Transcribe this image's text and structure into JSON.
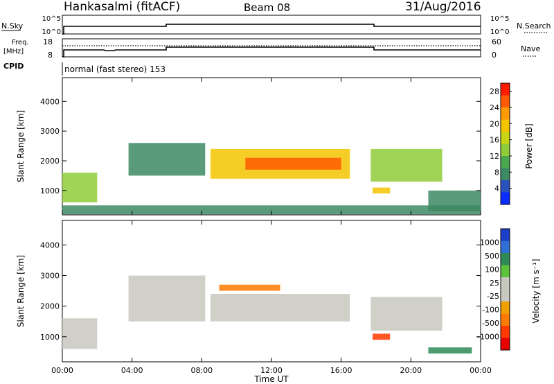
{
  "header": {
    "station": "Hankasalmi (fitACF)",
    "beam": "Beam 08",
    "date": "31/Aug/2016"
  },
  "strip_labels": {
    "nsky": "N.Sky",
    "nsearch": "N.Search",
    "freq_line1": "Freq.",
    "freq_line2": "[MHz]",
    "nave": "Nave",
    "cpid": "CPID",
    "cpid_value": "normal (fast stereo) 153",
    "noise_left_ticks": [
      "10^5",
      "10^0"
    ],
    "noise_right_ticks": [
      "10^5",
      "10^0"
    ],
    "freq_left_ticks": [
      "18",
      "8"
    ],
    "freq_right_ticks": [
      "60",
      "0"
    ]
  },
  "colors": {
    "power": [
      "#0a2cff",
      "#2a52be",
      "#3d8a64",
      "#4aa84e",
      "#8fcc3a",
      "#c8d414",
      "#f5c400",
      "#ff9a00",
      "#ff5a00",
      "#ff1a00"
    ],
    "velocity": [
      "#1c3fc9",
      "#2f6fd6",
      "#2f8a55",
      "#5cc23c",
      "#c8c8c0",
      "#c8c8c0",
      "#f0a000",
      "#ff7a00",
      "#ff3a00",
      "#e80000"
    ]
  },
  "chart_data": [
    {
      "type": "heatmap",
      "name": "power",
      "title": "",
      "xlabel": "Time UT",
      "ylabel": "Slant Range [km]",
      "x_ticks": [
        "00:00",
        "04:00",
        "08:00",
        "12:00",
        "16:00",
        "20:00",
        "00:00"
      ],
      "xlim_hours": [
        0,
        24
      ],
      "y_ticks": [
        1000,
        2000,
        3000,
        4000
      ],
      "ylim": [
        180,
        4800
      ],
      "colorbar_label": "Power [dB]",
      "colorbar_ticks": [
        "4",
        "8",
        "12",
        "16",
        "20",
        "24",
        "28"
      ],
      "colorbar_range": [
        0,
        30
      ],
      "regions": [
        {
          "t0": 0.0,
          "t1": 2.0,
          "r0": 600,
          "r1": 1600,
          "value": 14
        },
        {
          "t0": 0.0,
          "t1": 24.0,
          "r0": 200,
          "r1": 500,
          "value": 6
        },
        {
          "t0": 3.8,
          "t1": 8.2,
          "r0": 1500,
          "r1": 2600,
          "value": 8
        },
        {
          "t0": 8.5,
          "t1": 16.5,
          "r0": 1400,
          "r1": 2400,
          "value": 20
        },
        {
          "t0": 10.5,
          "t1": 16.0,
          "r0": 1700,
          "r1": 2100,
          "value": 26
        },
        {
          "t0": 17.7,
          "t1": 21.8,
          "r0": 1300,
          "r1": 2400,
          "value": 12
        },
        {
          "t0": 17.8,
          "t1": 18.8,
          "r0": 900,
          "r1": 1100,
          "value": 20
        },
        {
          "t0": 21.0,
          "t1": 24.0,
          "r0": 300,
          "r1": 1000,
          "value": 8
        }
      ]
    },
    {
      "type": "heatmap",
      "name": "velocity",
      "title": "",
      "xlabel": "Time UT",
      "ylabel": "Slant Range [km]",
      "x_ticks": [
        "00:00",
        "04:00",
        "08:00",
        "12:00",
        "16:00",
        "20:00",
        "00:00"
      ],
      "xlim_hours": [
        0,
        24
      ],
      "y_ticks": [
        1000,
        2000,
        3000,
        4000
      ],
      "ylim": [
        180,
        4800
      ],
      "colorbar_label": "Velocity [m s⁻¹]",
      "colorbar_ticks": [
        "1000",
        "500",
        "100",
        "25",
        "-25",
        "-100",
        "-500",
        "-1000"
      ],
      "regions": [
        {
          "t0": 0.0,
          "t1": 2.0,
          "r0": 600,
          "r1": 1600,
          "value": 0
        },
        {
          "t0": 3.8,
          "t1": 8.2,
          "r0": 1500,
          "r1": 3000,
          "value": 0
        },
        {
          "t0": 8.5,
          "t1": 16.5,
          "r0": 1500,
          "r1": 2400,
          "value": 0
        },
        {
          "t0": 17.7,
          "t1": 21.8,
          "r0": 1200,
          "r1": 2300,
          "value": 0
        },
        {
          "t0": 9.0,
          "t1": 12.5,
          "r0": 2500,
          "r1": 2700,
          "value": -100
        },
        {
          "t0": 17.8,
          "t1": 18.8,
          "r0": 900,
          "r1": 1100,
          "value": -500
        },
        {
          "t0": 21.0,
          "t1": 23.5,
          "r0": 450,
          "r1": 650,
          "value": 300
        }
      ]
    }
  ]
}
